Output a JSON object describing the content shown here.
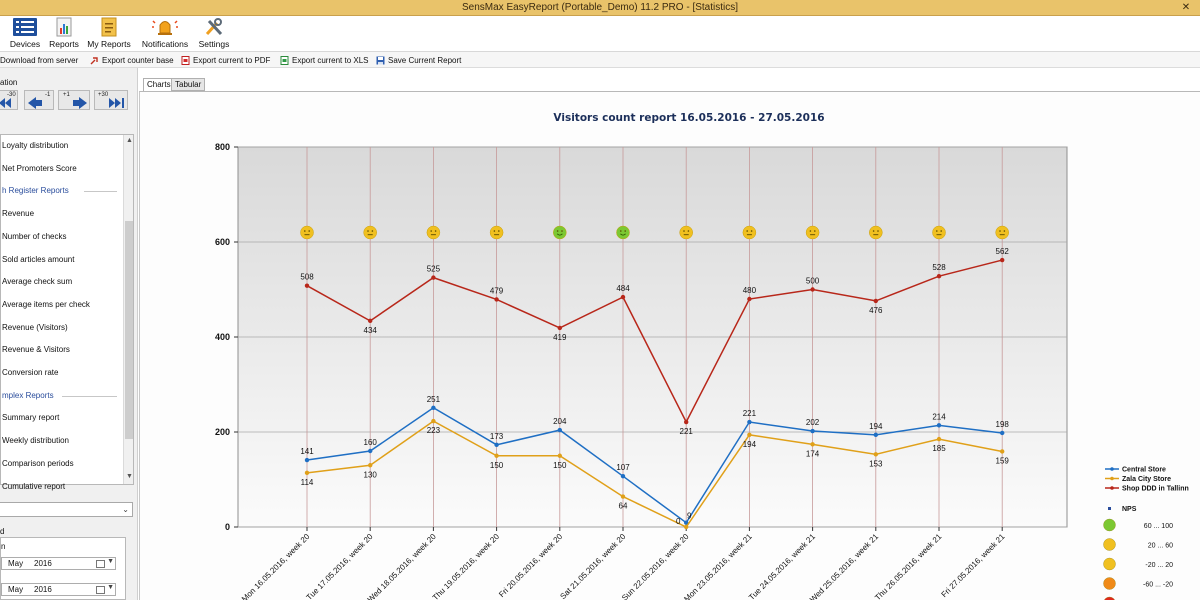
{
  "window": {
    "title": "SensMax EasyReport (Portable_Demo) 11.2 PRO - [Statistics]",
    "close_glyph": "✕"
  },
  "ribbon": [
    {
      "label": "Devices",
      "icon": "devices-icon"
    },
    {
      "label": "Reports",
      "icon": "reports-icon"
    },
    {
      "label": "My Reports",
      "icon": "my-reports-icon"
    },
    {
      "label": "Notifications",
      "icon": "notifications-icon"
    },
    {
      "label": "Settings",
      "icon": "settings-icon"
    }
  ],
  "toolbar": {
    "download": "Download from server",
    "export_base": "Export counter base",
    "export_pdf": "Export current to PDF",
    "export_xls": "Export current to XLS",
    "save_report": "Save Current Report"
  },
  "left": {
    "nav_heading": "ation",
    "nav_buttons": [
      "-30",
      "-1",
      "+1",
      "+30"
    ],
    "reports": [
      {
        "label": "Loyalty distribution",
        "type": "item"
      },
      {
        "label": "Net Promoters Score",
        "type": "item"
      },
      {
        "label": "h Register Reports",
        "type": "header"
      },
      {
        "label": "Revenue",
        "type": "item"
      },
      {
        "label": "Number of checks",
        "type": "item"
      },
      {
        "label": "Sold articles amount",
        "type": "item"
      },
      {
        "label": "Average check sum",
        "type": "item"
      },
      {
        "label": "Average items per check",
        "type": "item"
      },
      {
        "label": "Revenue (Visitors)",
        "type": "item"
      },
      {
        "label": "Revenue & Visitors",
        "type": "item"
      },
      {
        "label": "Conversion rate",
        "type": "item"
      },
      {
        "label": "mplex Reports",
        "type": "header"
      },
      {
        "label": "Summary report",
        "type": "item"
      },
      {
        "label": "Weekly distribution",
        "type": "item"
      },
      {
        "label": "Comparison periods",
        "type": "item"
      },
      {
        "label": "Cumulative report",
        "type": "item"
      }
    ],
    "period_label_1": "d",
    "period_label_2": "n",
    "date_from": {
      "month": "May",
      "year": "2016"
    },
    "date_to": {
      "month": "May",
      "year": "2016"
    }
  },
  "tabs": [
    "Charts",
    "Tabular"
  ],
  "colors": {
    "central": "#1f6fc4",
    "zala": "#e0a019",
    "shop": "#b8271a",
    "nps_green": "#7cc832",
    "nps_yellow": "#f0c020",
    "nps_orange": "#f08a18",
    "nps_red": "#e0281c"
  },
  "chart_data": {
    "type": "line",
    "title": "Visitors count report 16.05.2016 - 27.05.2016",
    "ylim": [
      0,
      800
    ],
    "yticks": [
      0,
      200,
      400,
      600,
      800
    ],
    "categories": [
      "Mon 16.05.2016,  week 20",
      "Tue 17.05.2016,  week 20",
      "Wed 18.05.2016,  week 20",
      "Thu 19.05.2016,  week 20",
      "Fri 20.05.2016,  week 20",
      "Sat 21.05.2016,  week 20",
      "Sun 22.05.2016,  week 20",
      "Mon 23.05.2016,  week 21",
      "Tue 24.05.2016,  week 21",
      "Wed 25.05.2016,  week 21",
      "Thu 26.05.2016,  week 21",
      "Fri 27.05.2016,  week 21"
    ],
    "series": [
      {
        "name": "Central Store",
        "color_key": "central",
        "values": [
          141,
          160,
          251,
          173,
          204,
          107,
          9,
          221,
          202,
          194,
          214,
          198
        ],
        "label_pos": "above"
      },
      {
        "name": "Zala City Store",
        "color_key": "zala",
        "values": [
          114,
          130,
          223,
          150,
          150,
          64,
          0,
          194,
          174,
          153,
          185,
          159
        ],
        "label_pos": "below"
      },
      {
        "name": "Shop DDD in Tallinn",
        "color_key": "shop",
        "values": [
          508,
          434,
          525,
          479,
          419,
          484,
          221,
          480,
          500,
          476,
          528,
          562
        ],
        "label_pos": "mixed"
      }
    ],
    "nps": {
      "level": 620,
      "values": [
        "yellow",
        "yellow",
        "yellow",
        "yellow",
        "green",
        "green",
        "yellow",
        "yellow",
        "yellow",
        "yellow",
        "yellow",
        "yellow"
      ]
    },
    "legend": {
      "position": "right",
      "nps_title": "NPS",
      "nps_ranges": [
        {
          "label": "60 ... 100",
          "color_key": "nps_green"
        },
        {
          "label": "20 ... 60",
          "color_key": "nps_yellow"
        },
        {
          "label": "-20 ... 20",
          "color_key": "nps_yellow"
        },
        {
          "label": "-60 ... -20",
          "color_key": "nps_orange"
        },
        {
          "label": "",
          "color_key": "nps_red"
        }
      ]
    },
    "grid": true
  }
}
